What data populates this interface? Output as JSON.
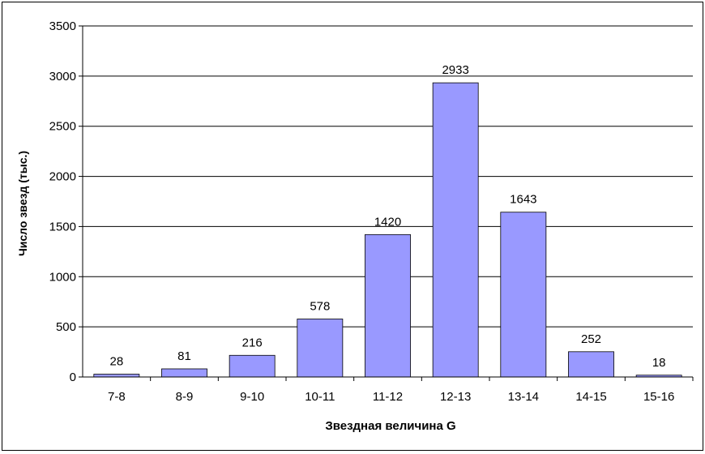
{
  "chart_data": {
    "type": "bar",
    "categories": [
      "7-8",
      "8-9",
      "9-10",
      "10-11",
      "11-12",
      "12-13",
      "13-14",
      "14-15",
      "15-16"
    ],
    "values": [
      28,
      81,
      216,
      578,
      1420,
      2933,
      1643,
      252,
      18
    ],
    "data_labels": [
      "28",
      "81",
      "216",
      "578",
      "1420",
      "2933",
      "1643",
      "252",
      "18"
    ],
    "yticks": [
      0,
      500,
      1000,
      1500,
      2000,
      2500,
      3000,
      3500
    ],
    "xlabel": "Звездная величина G",
    "ylabel": "Число звезд (тыс.)",
    "ylim": [
      0,
      3500
    ],
    "grid": true,
    "legend": "none",
    "colors": {
      "bar": "#9999ff",
      "bar_stroke": "#000000",
      "grid": "#000000",
      "text": "#000000"
    }
  }
}
